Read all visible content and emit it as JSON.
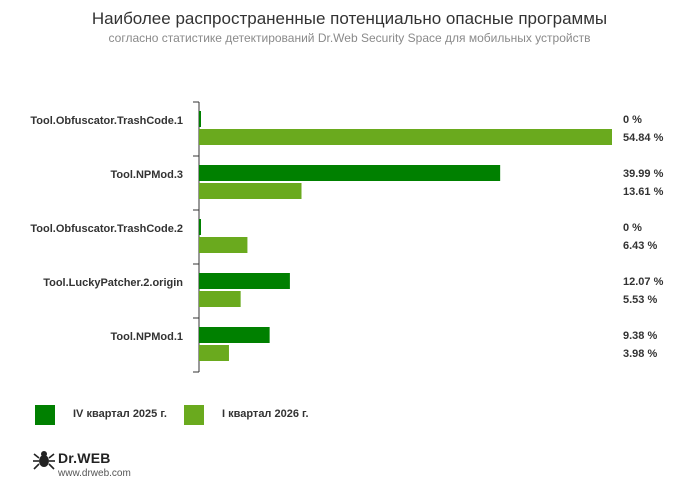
{
  "header": {
    "title": "Наиболее распространенные потенциально опасные программы",
    "subtitle": "согласно статистике детектирований Dr.Web Security Space для мобильных устройств"
  },
  "colors": {
    "series_1": "#008000",
    "series_2": "#6aaa1e",
    "axis": "#333333"
  },
  "chart_data": {
    "type": "bar",
    "orientation": "horizontal",
    "categories": [
      "Tool.Obfuscator.TrashCode.1",
      "Tool.NPMod.3",
      "Tool.Obfuscator.TrashCode.2",
      "Tool.LuckyPatcher.2.origin",
      "Tool.NPMod.1"
    ],
    "series": [
      {
        "name": "IV квартал 2025 г.",
        "values": [
          0,
          39.99,
          0,
          12.07,
          9.38
        ],
        "labels": [
          "0 %",
          "39.99 %",
          "0 %",
          "12.07 %",
          "9.38 %"
        ]
      },
      {
        "name": "I квартал 2026 г.",
        "values": [
          54.84,
          13.61,
          6.43,
          5.53,
          3.98
        ],
        "labels": [
          "54.84 %",
          "13.61 %",
          "6.43 %",
          "5.53 %",
          "3.98 %"
        ]
      }
    ],
    "xlim": [
      0,
      54.84
    ],
    "grid": false,
    "legend_position": "bottom-left"
  },
  "brand": {
    "logo_name": "spider-logo-icon",
    "name": "Dr.WEB",
    "url": "www.drweb.com"
  }
}
